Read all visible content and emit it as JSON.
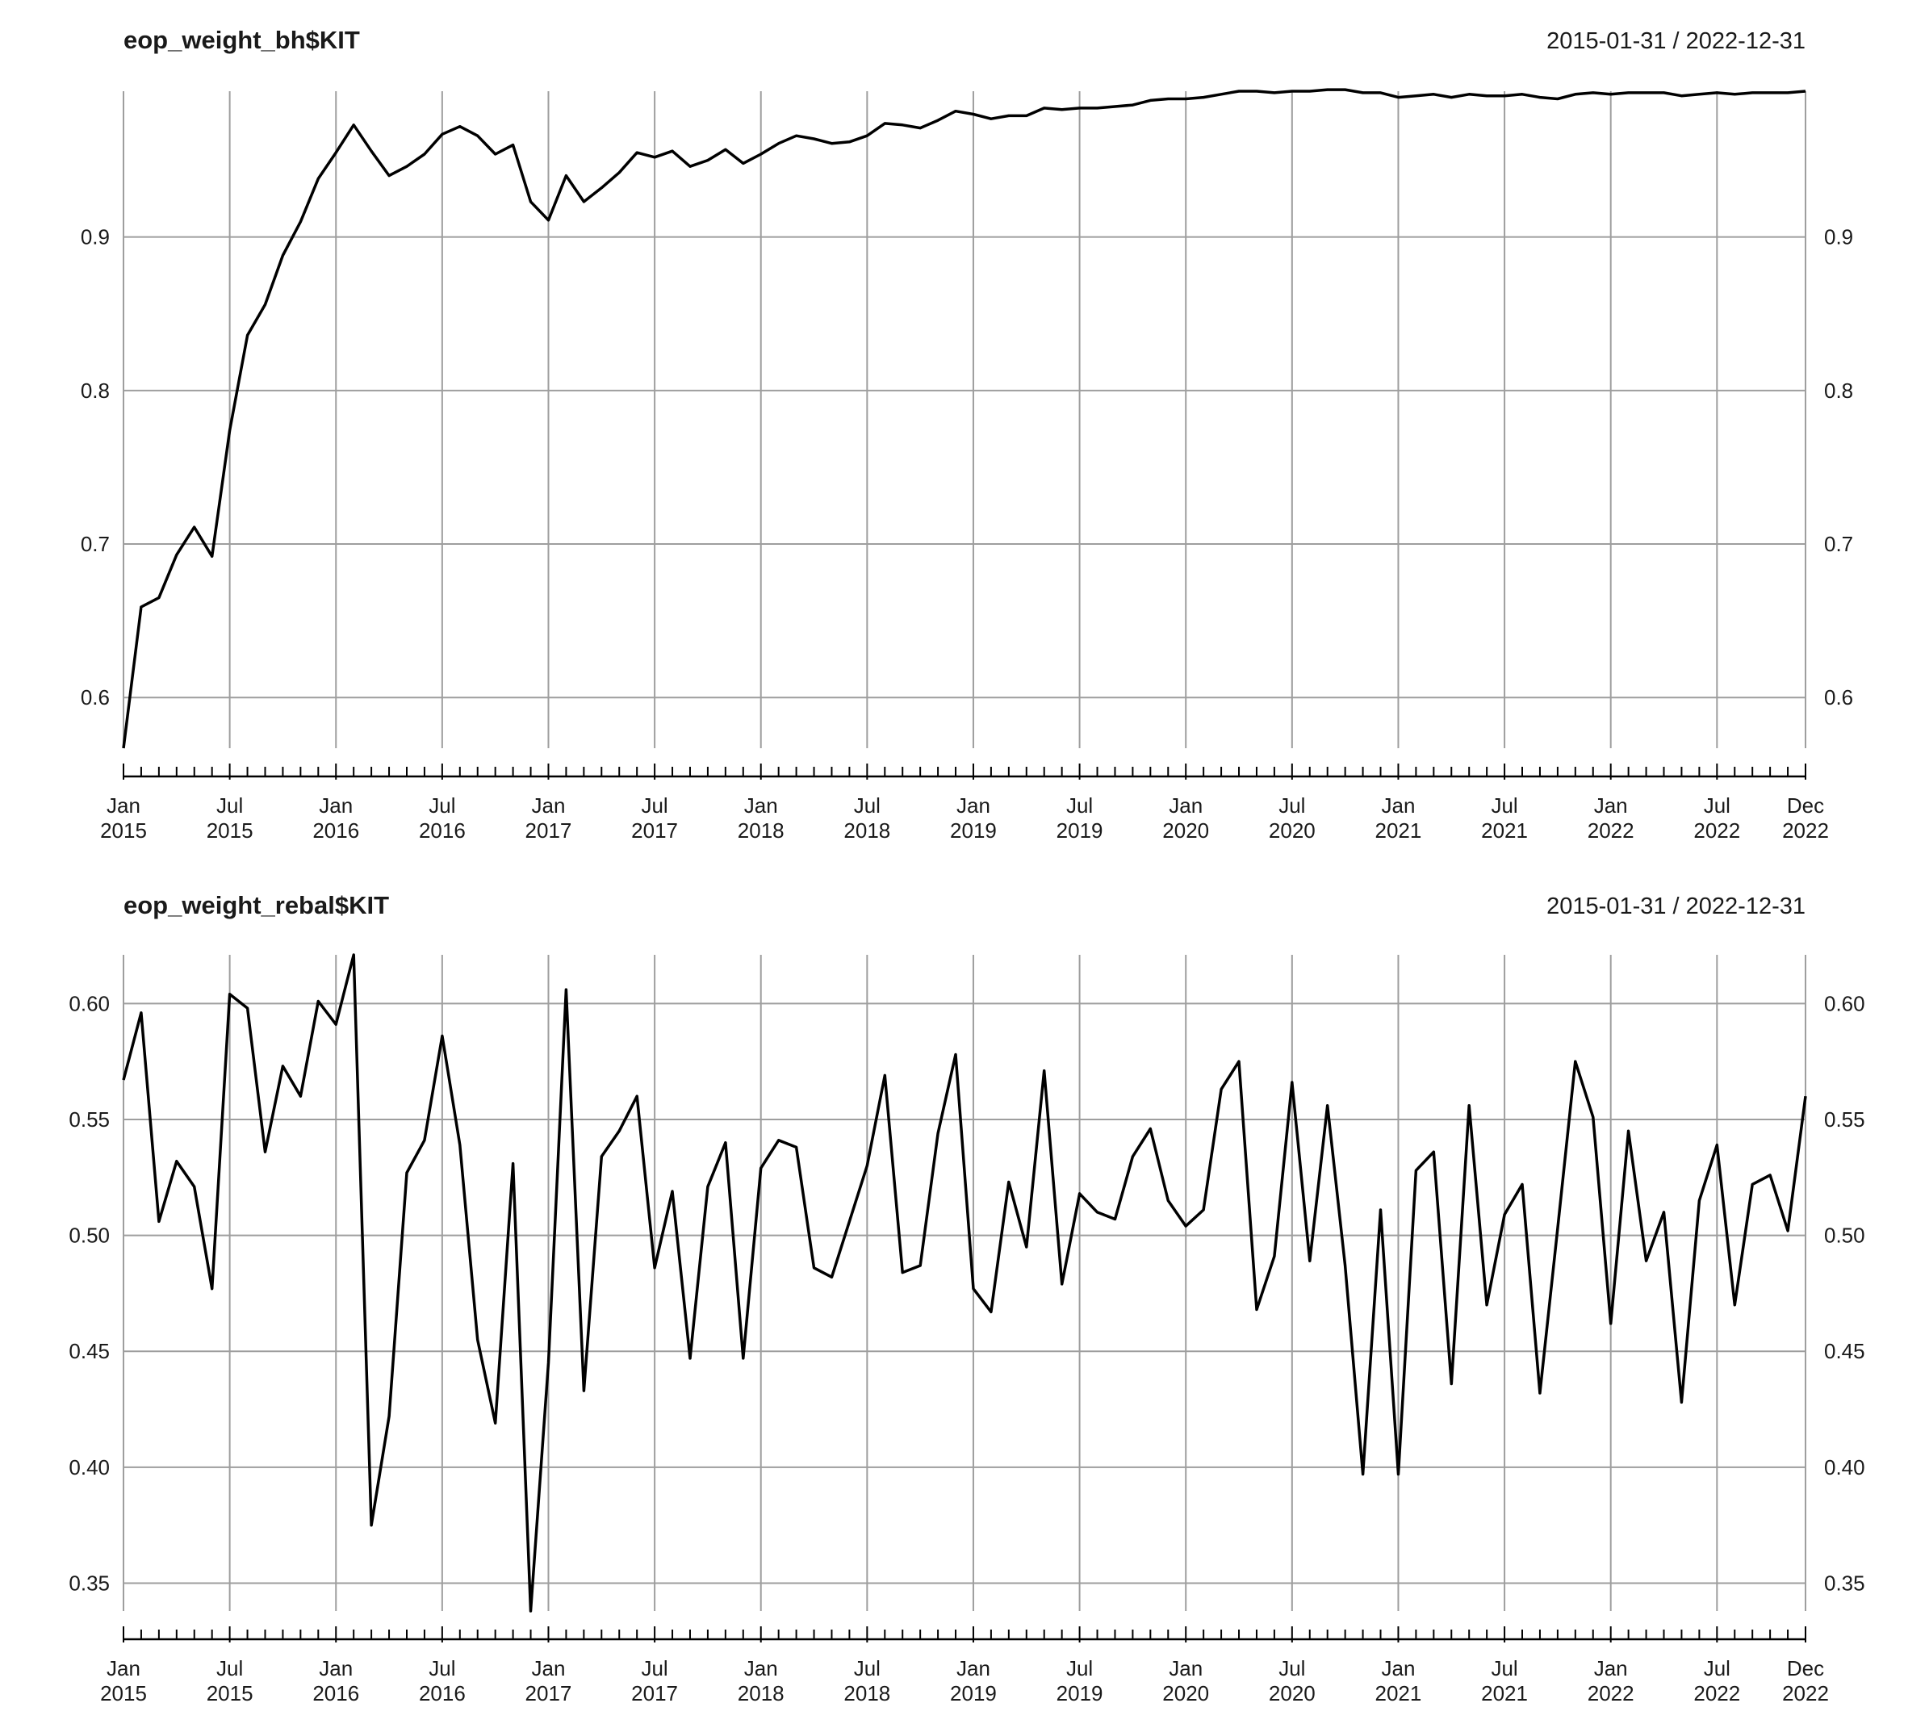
{
  "chart_data": [
    {
      "type": "line",
      "title": "eop_weight_bh$KIT",
      "date_range": "2015-01-31 / 2022-12-31",
      "xlabel": "",
      "ylabel": "",
      "x_start": "2015-01-31",
      "x_end": "2022-12-31",
      "x_frequency": "monthly",
      "ylim": [
        0.567,
        0.995
      ],
      "yticks": [
        {
          "value": 0.6,
          "label": "0.6"
        },
        {
          "value": 0.7,
          "label": "0.7"
        },
        {
          "value": 0.8,
          "label": "0.8"
        },
        {
          "value": 0.9,
          "label": "0.9"
        }
      ],
      "xticks": [
        {
          "month": 0,
          "label": "Jan",
          "year": "2015"
        },
        {
          "month": 6,
          "label": "Jul",
          "year": "2015"
        },
        {
          "month": 12,
          "label": "Jan",
          "year": "2016"
        },
        {
          "month": 18,
          "label": "Jul",
          "year": "2016"
        },
        {
          "month": 24,
          "label": "Jan",
          "year": "2017"
        },
        {
          "month": 30,
          "label": "Jul",
          "year": "2017"
        },
        {
          "month": 36,
          "label": "Jan",
          "year": "2018"
        },
        {
          "month": 42,
          "label": "Jul",
          "year": "2018"
        },
        {
          "month": 48,
          "label": "Jan",
          "year": "2019"
        },
        {
          "month": 54,
          "label": "Jul",
          "year": "2019"
        },
        {
          "month": 60,
          "label": "Jan",
          "year": "2020"
        },
        {
          "month": 66,
          "label": "Jul",
          "year": "2020"
        },
        {
          "month": 72,
          "label": "Jan",
          "year": "2021"
        },
        {
          "month": 78,
          "label": "Jul",
          "year": "2021"
        },
        {
          "month": 84,
          "label": "Jan",
          "year": "2022"
        },
        {
          "month": 90,
          "label": "Jul",
          "year": "2022"
        },
        {
          "month": 95,
          "label": "Dec",
          "year": "2022"
        }
      ],
      "grid": true,
      "values": [
        0.567,
        0.659,
        0.665,
        0.693,
        0.711,
        0.692,
        0.774,
        0.836,
        0.856,
        0.888,
        0.91,
        0.938,
        0.955,
        0.973,
        0.956,
        0.94,
        0.946,
        0.954,
        0.967,
        0.972,
        0.966,
        0.954,
        0.96,
        0.923,
        0.911,
        0.94,
        0.923,
        0.932,
        0.942,
        0.955,
        0.952,
        0.956,
        0.946,
        0.95,
        0.957,
        0.948,
        0.954,
        0.961,
        0.966,
        0.964,
        0.961,
        0.962,
        0.966,
        0.974,
        0.973,
        0.971,
        0.976,
        0.982,
        0.98,
        0.977,
        0.979,
        0.979,
        0.984,
        0.983,
        0.984,
        0.984,
        0.985,
        0.986,
        0.989,
        0.99,
        0.99,
        0.991,
        0.993,
        0.995,
        0.995,
        0.994,
        0.995,
        0.995,
        0.996,
        0.996,
        0.994,
        0.994,
        0.991,
        0.992,
        0.993,
        0.991,
        0.993,
        0.992,
        0.992,
        0.993,
        0.991,
        0.99,
        0.993,
        0.994,
        0.993,
        0.994,
        0.994,
        0.994,
        0.992,
        0.993,
        0.994,
        0.993,
        0.994,
        0.994,
        0.994,
        0.995
      ]
    },
    {
      "type": "line",
      "title": "eop_weight_rebal$KIT",
      "date_range": "2015-01-31 / 2022-12-31",
      "xlabel": "",
      "ylabel": "",
      "x_start": "2015-01-31",
      "x_end": "2022-12-31",
      "x_frequency": "monthly",
      "ylim": [
        0.338,
        0.621
      ],
      "yticks": [
        {
          "value": 0.35,
          "label": "0.35"
        },
        {
          "value": 0.4,
          "label": "0.40"
        },
        {
          "value": 0.45,
          "label": "0.45"
        },
        {
          "value": 0.5,
          "label": "0.50"
        },
        {
          "value": 0.55,
          "label": "0.55"
        },
        {
          "value": 0.6,
          "label": "0.60"
        }
      ],
      "xticks": [
        {
          "month": 0,
          "label": "Jan",
          "year": "2015"
        },
        {
          "month": 6,
          "label": "Jul",
          "year": "2015"
        },
        {
          "month": 12,
          "label": "Jan",
          "year": "2016"
        },
        {
          "month": 18,
          "label": "Jul",
          "year": "2016"
        },
        {
          "month": 24,
          "label": "Jan",
          "year": "2017"
        },
        {
          "month": 30,
          "label": "Jul",
          "year": "2017"
        },
        {
          "month": 36,
          "label": "Jan",
          "year": "2018"
        },
        {
          "month": 42,
          "label": "Jul",
          "year": "2018"
        },
        {
          "month": 48,
          "label": "Jan",
          "year": "2019"
        },
        {
          "month": 54,
          "label": "Jul",
          "year": "2019"
        },
        {
          "month": 60,
          "label": "Jan",
          "year": "2020"
        },
        {
          "month": 66,
          "label": "Jul",
          "year": "2020"
        },
        {
          "month": 72,
          "label": "Jan",
          "year": "2021"
        },
        {
          "month": 78,
          "label": "Jul",
          "year": "2021"
        },
        {
          "month": 84,
          "label": "Jan",
          "year": "2022"
        },
        {
          "month": 90,
          "label": "Jul",
          "year": "2022"
        },
        {
          "month": 95,
          "label": "Dec",
          "year": "2022"
        }
      ],
      "grid": true,
      "values": [
        0.567,
        0.596,
        0.506,
        0.532,
        0.521,
        0.477,
        0.604,
        0.598,
        0.536,
        0.573,
        0.56,
        0.601,
        0.591,
        0.621,
        0.375,
        0.422,
        0.527,
        0.541,
        0.586,
        0.539,
        0.455,
        0.419,
        0.531,
        0.338,
        0.445,
        0.606,
        0.433,
        0.534,
        0.545,
        0.56,
        0.486,
        0.519,
        0.447,
        0.521,
        0.54,
        0.447,
        0.529,
        0.541,
        0.538,
        0.486,
        0.482,
        0.506,
        0.53,
        0.569,
        0.484,
        0.487,
        0.544,
        0.578,
        0.477,
        0.467,
        0.523,
        0.495,
        0.571,
        0.479,
        0.518,
        0.51,
        0.507,
        0.534,
        0.546,
        0.515,
        0.504,
        0.511,
        0.563,
        0.575,
        0.468,
        0.491,
        0.566,
        0.489,
        0.556,
        0.487,
        0.397,
        0.511,
        0.397,
        0.528,
        0.536,
        0.436,
        0.556,
        0.47,
        0.509,
        0.522,
        0.432,
        0.503,
        0.575,
        0.551,
        0.462,
        0.545,
        0.489,
        0.51,
        0.428,
        0.515,
        0.539,
        0.47,
        0.522,
        0.526,
        0.502,
        0.56
      ]
    }
  ]
}
